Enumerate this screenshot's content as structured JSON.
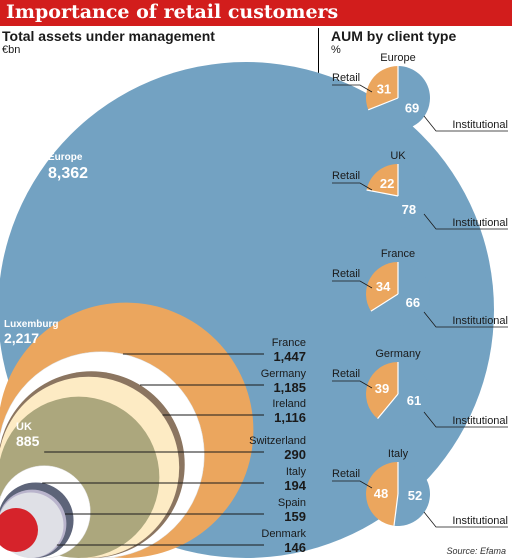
{
  "header": {
    "title": "Importance of retail customers"
  },
  "left": {
    "title": "Total assets under management",
    "unit": "€bn"
  },
  "right": {
    "title": "AUM by client type",
    "unit": "%"
  },
  "source": "Source: Efama",
  "colors": {
    "header": "#d21d1c",
    "blue": "#73a2c2",
    "orange": "#eba65e",
    "brown": "#8b7560",
    "cream": "#fdebc4",
    "olive": "#aca77d",
    "slate": "#5d6479",
    "lilac": "#b9b4cc",
    "lightgrey": "#dfe0e6",
    "red": "#d6232b"
  },
  "chart_data": [
    {
      "type": "bubble",
      "title": "Total assets under management",
      "unit": "€bn",
      "items": [
        {
          "name": "Europe",
          "value": 8362,
          "label": "8,362",
          "color": "#73a2c2",
          "label_inside": true
        },
        {
          "name": "Luxemburg",
          "value": 2217,
          "label": "2,217",
          "color": "#eba65e",
          "label_inside": true
        },
        {
          "name": "France",
          "value": 1447,
          "label": "1,447",
          "color": "#ffffff"
        },
        {
          "name": "Germany",
          "value": 1185,
          "label": "1,185",
          "color": "#8b7560"
        },
        {
          "name": "Ireland",
          "value": 1116,
          "label": "1,116",
          "color": "#fdebc4"
        },
        {
          "name": "UK",
          "value": 885,
          "label": "885",
          "color": "#aca77d",
          "label_inside": true
        },
        {
          "name": "Switzerland",
          "value": 290,
          "label": "290",
          "color": "#ffffff"
        },
        {
          "name": "Italy",
          "value": 194,
          "label": "194",
          "color": "#5d6479"
        },
        {
          "name": "Spain",
          "value": 159,
          "label": "159",
          "color": "#b9b4cc"
        },
        {
          "name": "Denmark",
          "value": 146,
          "label": "146",
          "color": "#dfe0e6"
        }
      ]
    },
    {
      "type": "pie",
      "title": "AUM by client type",
      "unit": "%",
      "slice_labels": [
        "Retail",
        "Institutional"
      ],
      "colors": [
        "#eba65e",
        "#73a2c2"
      ],
      "charts": [
        {
          "name": "Europe",
          "retail": 31,
          "institutional": 69
        },
        {
          "name": "UK",
          "retail": 22,
          "institutional": 78
        },
        {
          "name": "France",
          "retail": 34,
          "institutional": 66
        },
        {
          "name": "Germany",
          "retail": 39,
          "institutional": 61
        },
        {
          "name": "Italy",
          "retail": 48,
          "institutional": 52
        }
      ]
    }
  ]
}
